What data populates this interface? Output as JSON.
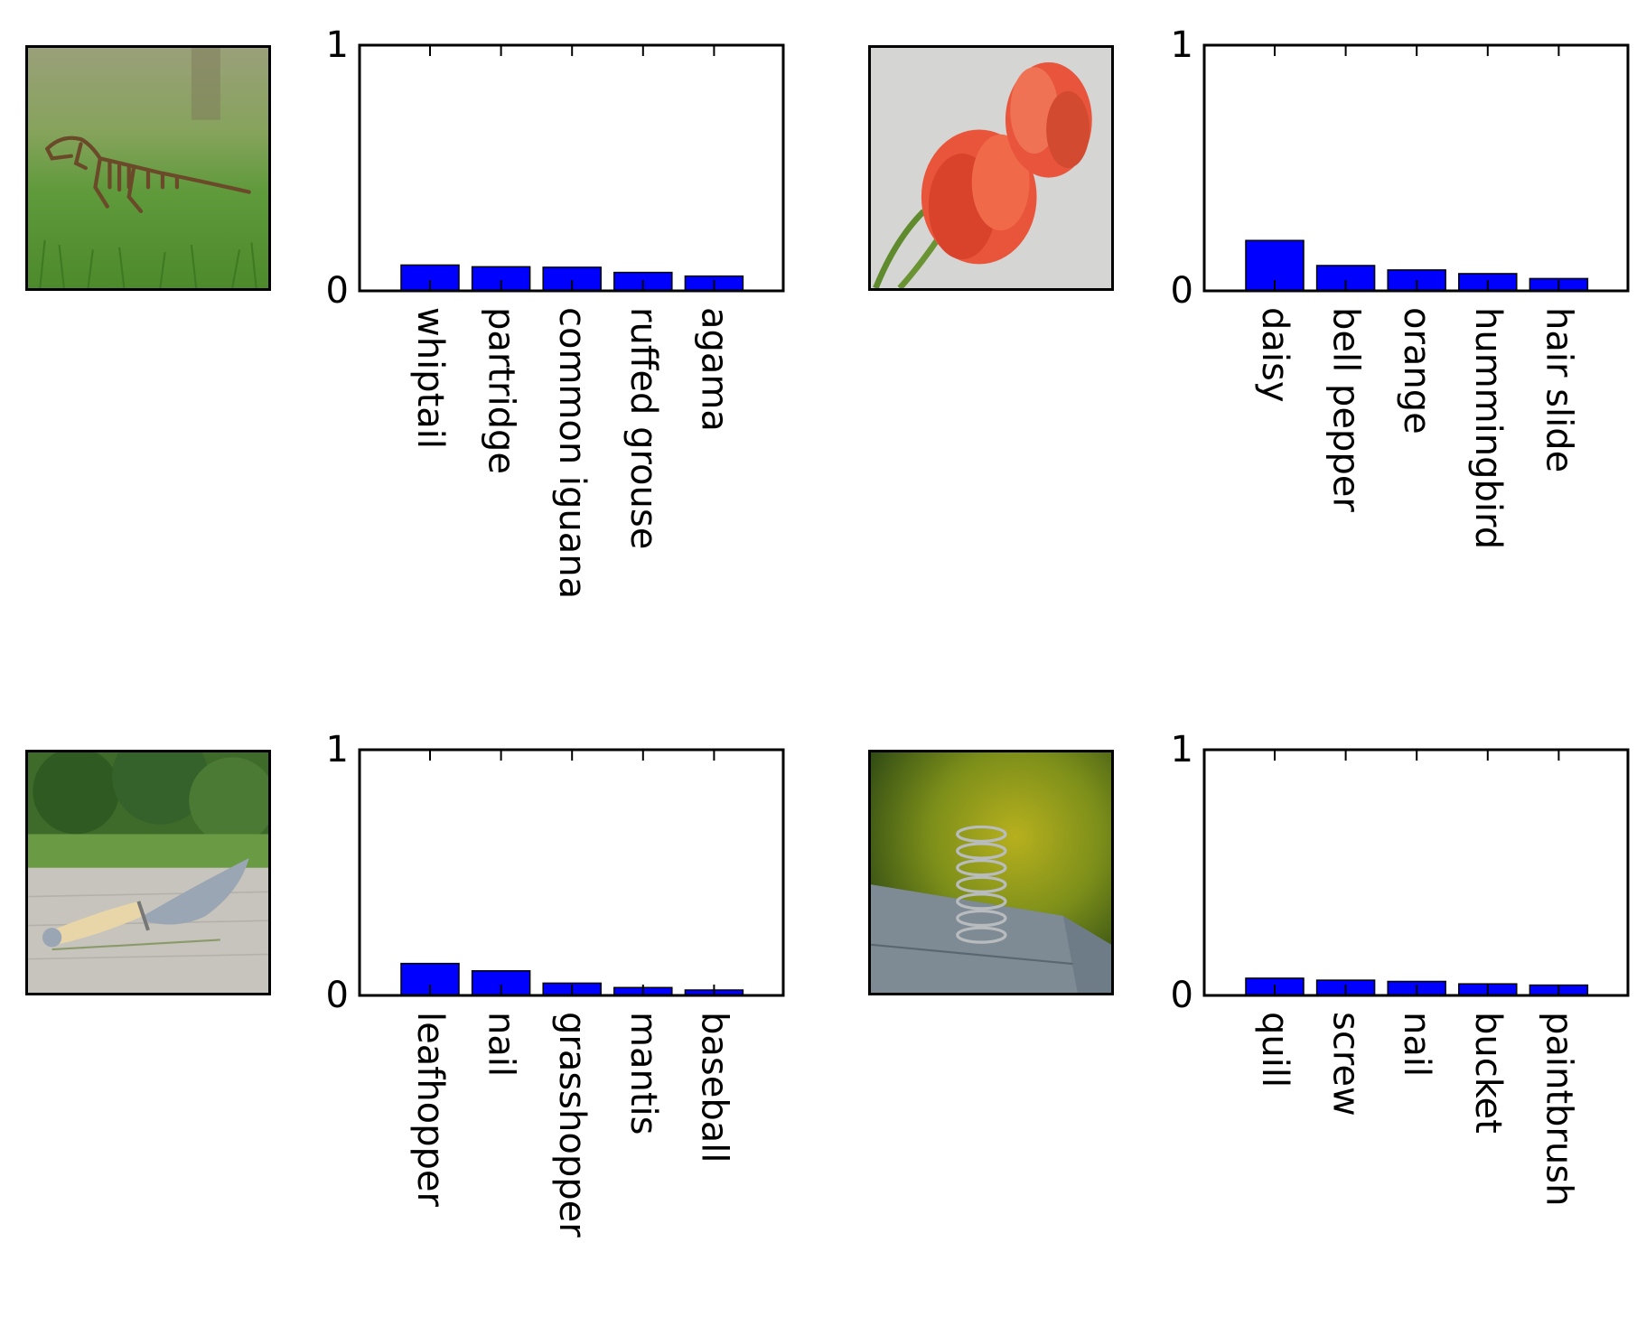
{
  "colors": {
    "bar": "#0000ff",
    "axis": "#000000",
    "background": "#ffffff"
  },
  "chart_data": [
    {
      "type": "bar",
      "image": "dinosaur-skeleton-image",
      "categories": [
        "whiptail",
        "partridge",
        "common iguana",
        "ruffed grouse",
        "agama"
      ],
      "values": [
        0.105,
        0.098,
        0.096,
        0.075,
        0.06
      ],
      "ylim": [
        0,
        1
      ],
      "yticks": [
        "0",
        "1"
      ],
      "xlabel": "",
      "ylabel": "",
      "title": ""
    },
    {
      "type": "bar",
      "image": "tulips-image",
      "categories": [
        "daisy",
        "bell pepper",
        "orange",
        "hummingbird",
        "hair slide"
      ],
      "values": [
        0.205,
        0.103,
        0.085,
        0.07,
        0.05
      ],
      "ylim": [
        0,
        1
      ],
      "yticks": [
        "0",
        "1"
      ],
      "xlabel": "",
      "ylabel": "",
      "title": ""
    },
    {
      "type": "bar",
      "image": "trowel-image",
      "categories": [
        "leafhopper",
        "nail",
        "grasshopper",
        "mantis",
        "baseball"
      ],
      "values": [
        0.13,
        0.1,
        0.05,
        0.032,
        0.022
      ],
      "ylim": [
        0,
        1
      ],
      "yticks": [
        "0",
        "1"
      ],
      "xlabel": "",
      "ylabel": "",
      "title": ""
    },
    {
      "type": "bar",
      "image": "spring-image",
      "categories": [
        "quill",
        "screw",
        "nail",
        "bucket",
        "paintbrush"
      ],
      "values": [
        0.07,
        0.062,
        0.057,
        0.047,
        0.042
      ],
      "ylim": [
        0,
        1
      ],
      "yticks": [
        "0",
        "1"
      ],
      "xlabel": "",
      "ylabel": "",
      "title": ""
    }
  ]
}
